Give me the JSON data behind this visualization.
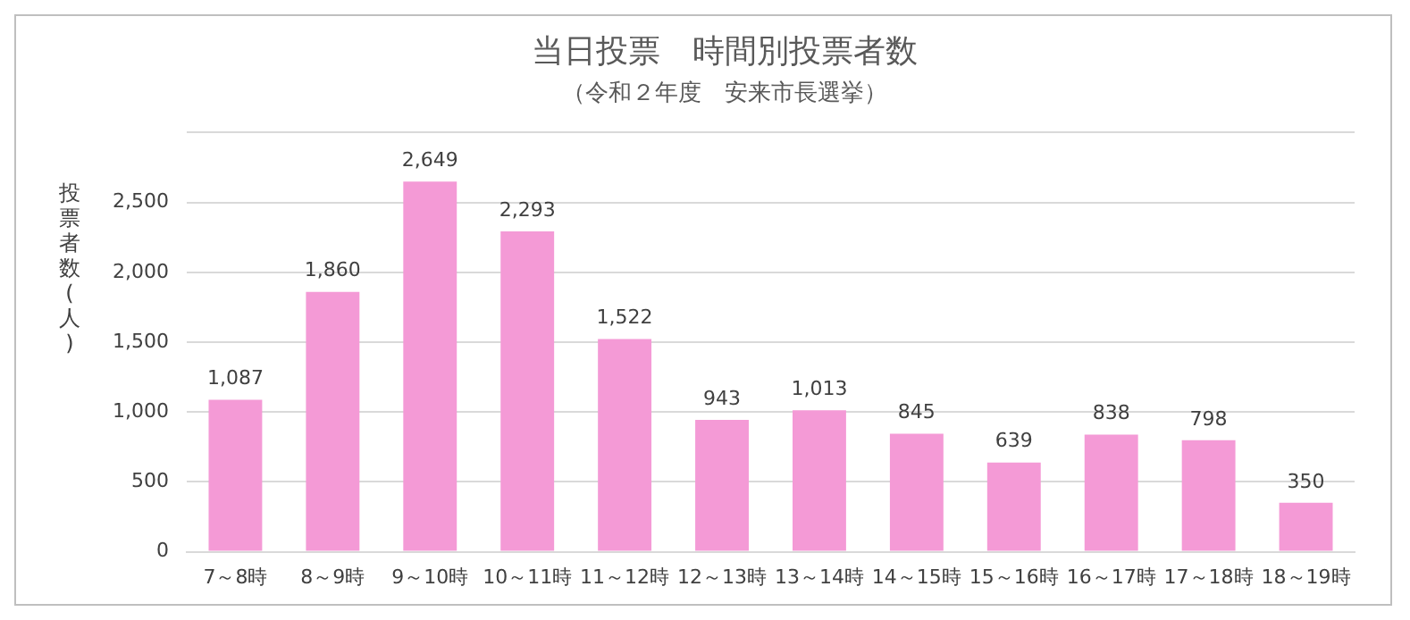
{
  "chart_data": {
    "type": "bar",
    "title": "当日投票　時間別投票者数",
    "subtitle": "（令和２年度　安来市長選挙）",
    "ylabel": "投票者数(人)",
    "categories": [
      "7～8時",
      "8～9時",
      "9～10時",
      "10～11時",
      "11～12時",
      "12～13時",
      "13～14時",
      "14～15時",
      "15～16時",
      "16～17時",
      "17～18時",
      "18～19時"
    ],
    "values": [
      1087,
      1860,
      2649,
      2293,
      1522,
      943,
      1013,
      845,
      639,
      838,
      798,
      350
    ],
    "value_labels": [
      "1,087",
      "1,860",
      "2,649",
      "2,293",
      "1,522",
      "943",
      "1,013",
      "845",
      "639",
      "838",
      "798",
      "350"
    ],
    "color": "#f49ad6",
    "ylim": [
      0,
      3000
    ],
    "yticks": [
      {
        "value": 0,
        "label": "0"
      },
      {
        "value": 500,
        "label": "500"
      },
      {
        "value": 1000,
        "label": "1,000"
      },
      {
        "value": 1500,
        "label": "1,500"
      },
      {
        "value": 2000,
        "label": "2,000"
      },
      {
        "value": 2500,
        "label": "2,500"
      },
      {
        "value": 3000,
        "label": null
      }
    ],
    "grid": "y"
  }
}
